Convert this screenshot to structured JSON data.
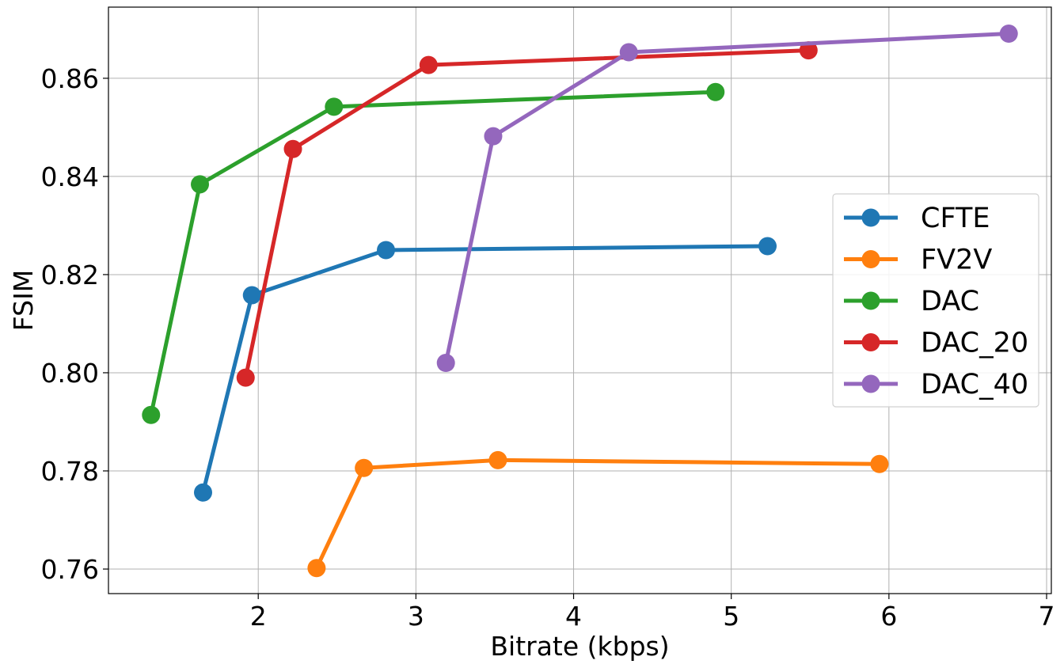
{
  "chart_data": {
    "type": "line",
    "title": "",
    "xlabel": "Bitrate (kbps)",
    "ylabel": "FSIM",
    "xlim": [
      1.05,
      7.03
    ],
    "ylim": [
      0.755,
      0.8745
    ],
    "xticks": [
      2,
      3,
      4,
      5,
      6,
      7
    ],
    "xtick_labels": [
      "2",
      "3",
      "4",
      "5",
      "6",
      "7"
    ],
    "yticks": [
      0.76,
      0.78,
      0.8,
      0.82,
      0.84,
      0.86
    ],
    "ytick_labels": [
      "0.76",
      "0.78",
      "0.80",
      "0.82",
      "0.84",
      "0.86"
    ],
    "grid": true,
    "legend_position": "center-right",
    "series": [
      {
        "name": "CFTE",
        "color": "#1f77b4",
        "x": [
          1.65,
          1.96,
          2.81,
          5.23
        ],
        "y": [
          0.7756,
          0.8158,
          0.825,
          0.8258
        ]
      },
      {
        "name": "FV2V",
        "color": "#ff7f0e",
        "x": [
          2.37,
          2.67,
          3.52,
          5.94
        ],
        "y": [
          0.7602,
          0.7806,
          0.7822,
          0.7814
        ]
      },
      {
        "name": "DAC",
        "color": "#2ca02c",
        "x": [
          1.32,
          1.63,
          2.48,
          4.9
        ],
        "y": [
          0.7914,
          0.8384,
          0.8542,
          0.8572
        ]
      },
      {
        "name": "DAC_20",
        "color": "#d62728",
        "x": [
          1.92,
          2.22,
          3.08,
          5.49
        ],
        "y": [
          0.799,
          0.8456,
          0.8627,
          0.8657
        ]
      },
      {
        "name": "DAC_40",
        "color": "#9467bd",
        "x": [
          3.19,
          3.49,
          4.35,
          6.76
        ],
        "y": [
          0.802,
          0.8482,
          0.8653,
          0.8691
        ]
      }
    ]
  }
}
